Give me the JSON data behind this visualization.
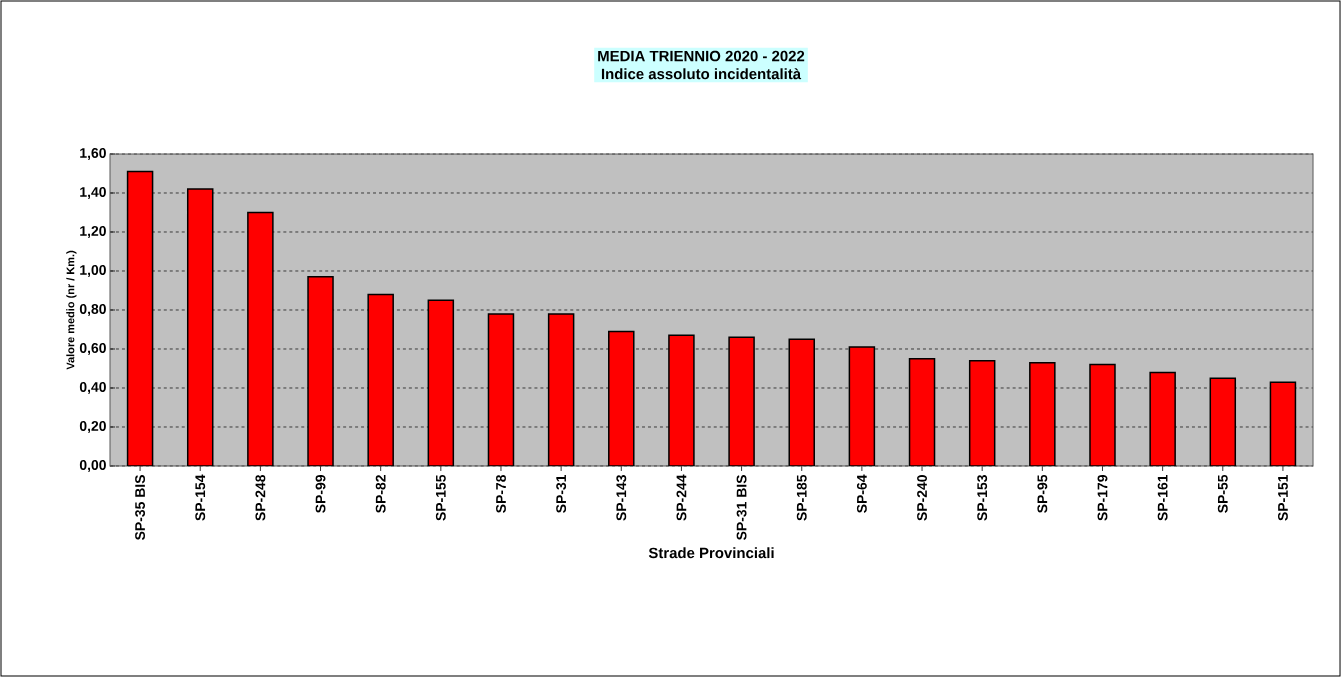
{
  "chart_data": {
    "type": "bar",
    "title": "MEDIA TRIENNIO 2020 - 2022",
    "subtitle": "Indice assoluto incidentalità",
    "xlabel": "Strade Provinciali",
    "ylabel": "Valore medio  (nr / Km.)",
    "categories": [
      "SP-35 BIS",
      "SP-154",
      "SP-248",
      "SP-99",
      "SP-82",
      "SP-155",
      "SP-78",
      "SP-31",
      "SP-143",
      "SP-244",
      "SP-31 BIS",
      "SP-185",
      "SP-64",
      "SP-240",
      "SP-153",
      "SP-95",
      "SP-179",
      "SP-161",
      "SP-55",
      "SP-151"
    ],
    "values": [
      1.51,
      1.42,
      1.3,
      0.97,
      0.88,
      0.85,
      0.78,
      0.78,
      0.69,
      0.67,
      0.66,
      0.65,
      0.61,
      0.55,
      0.54,
      0.53,
      0.52,
      0.48,
      0.45,
      0.43
    ],
    "color": "#ff0000",
    "ylim": [
      0,
      1.6
    ],
    "yticks": [
      {
        "value": 0,
        "label": "0,00"
      },
      {
        "value": 0.2,
        "label": "0,20"
      },
      {
        "value": 0.4,
        "label": "0,40"
      },
      {
        "value": 0.6,
        "label": "0,60"
      },
      {
        "value": 0.8,
        "label": "0,80"
      },
      {
        "value": 1.0,
        "label": "1,00"
      },
      {
        "value": 1.2,
        "label": "1,20"
      },
      {
        "value": 1.4,
        "label": "1,40"
      },
      {
        "value": 1.6,
        "label": "1,60"
      }
    ],
    "grid": "y"
  }
}
